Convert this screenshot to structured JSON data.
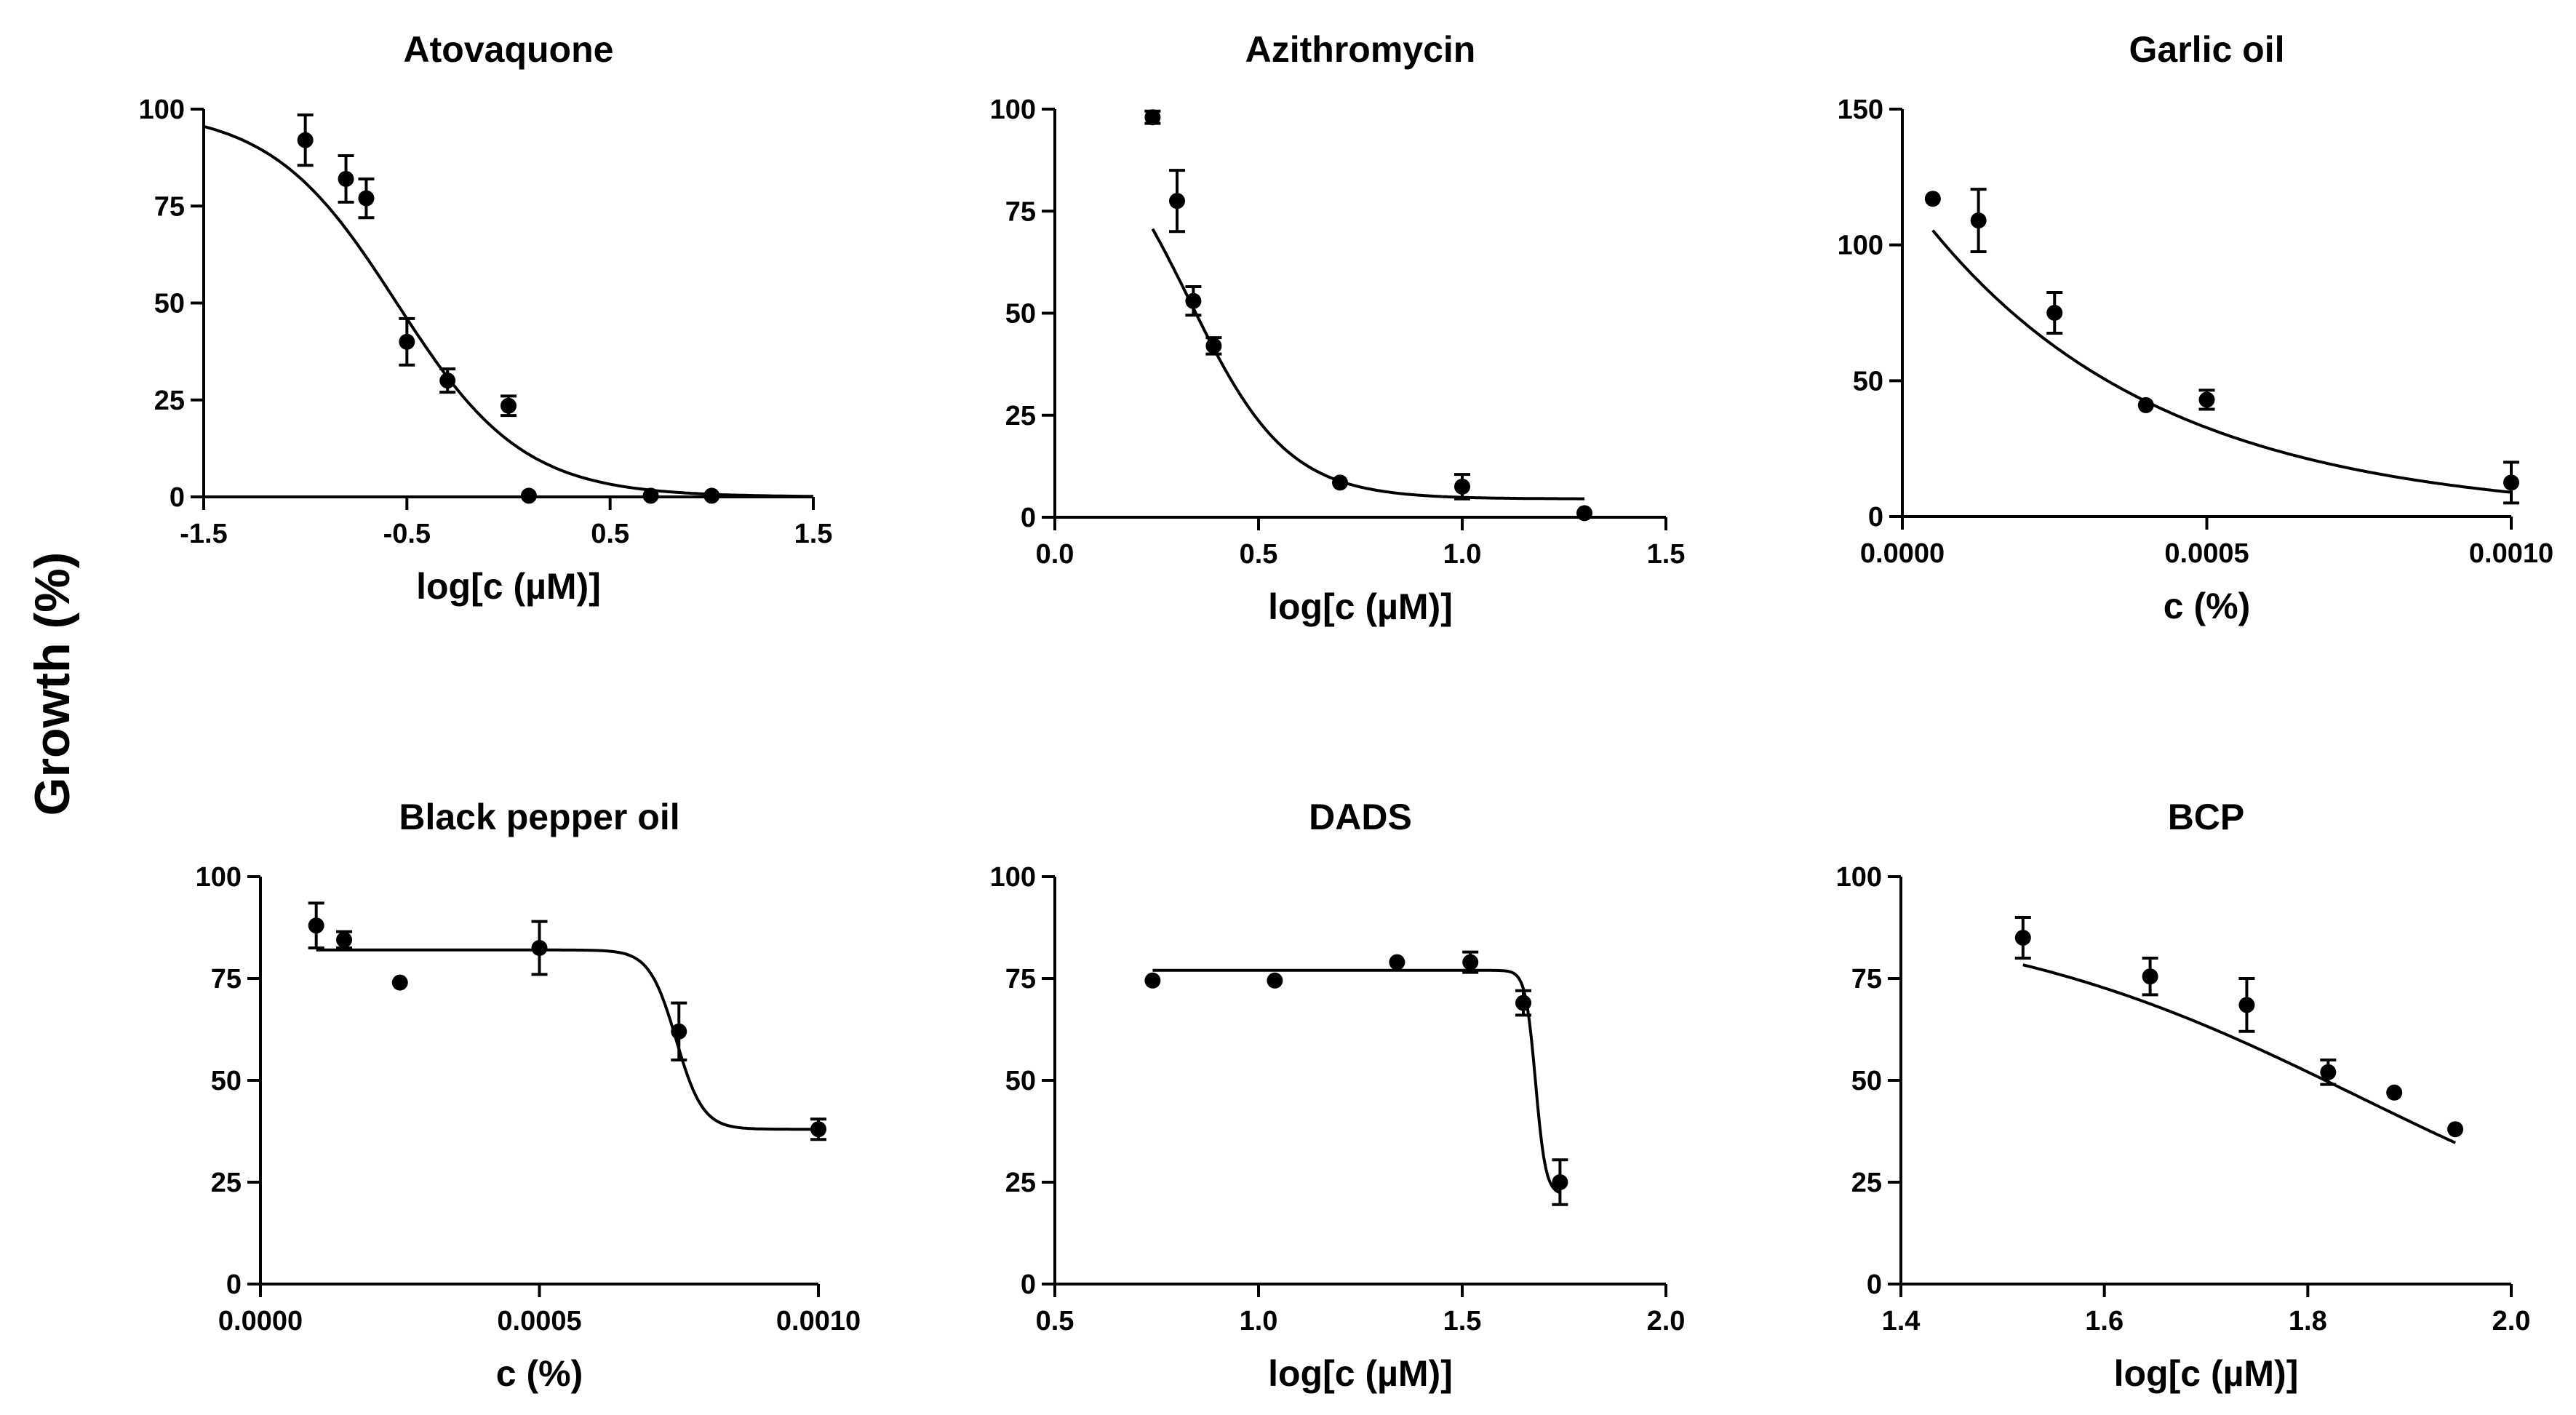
{
  "figure": {
    "shared_ylabel": "Growth (%)"
  },
  "chart_data": [
    {
      "type": "scatter",
      "title": "Atovaquone",
      "xlabel": "log[c (µM)]",
      "ylabel": "Growth (%)",
      "xlim": [
        -1.5,
        1.5
      ],
      "ylim": [
        0,
        100
      ],
      "xticks": [
        "-1.5",
        "-0.5",
        "0.5",
        "1.5"
      ],
      "yticks": [
        "0",
        "25",
        "50",
        "75",
        "100"
      ],
      "x": [
        -1.0,
        -0.8,
        -0.7,
        -0.5,
        -0.3,
        0.0,
        0.1,
        0.7,
        1.0
      ],
      "y": [
        92,
        82,
        77,
        40,
        30,
        23.5,
        0.3,
        0.3,
        0.3
      ],
      "err": [
        6.5,
        6,
        5,
        6,
        3,
        2.5,
        0,
        0,
        0
      ],
      "curve": {
        "model": "four-parameter logistic",
        "top": 100,
        "bottom": 0,
        "logIC50": -0.55,
        "hill": -1.4
      }
    },
    {
      "type": "scatter",
      "title": "Azithromycin",
      "xlabel": "log[c (µM)]",
      "ylabel": "Growth (%)",
      "xlim": [
        0.0,
        1.5
      ],
      "ylim": [
        0,
        100
      ],
      "xticks": [
        "0.0",
        "0.5",
        "1.0",
        "1.5"
      ],
      "yticks": [
        "0",
        "25",
        "50",
        "75",
        "100"
      ],
      "x": [
        0.24,
        0.3,
        0.34,
        0.39,
        0.7,
        1.0,
        1.3
      ],
      "y": [
        98,
        77.5,
        53,
        42,
        8.5,
        7.5,
        1
      ],
      "err": [
        1.5,
        7.5,
        3.5,
        2,
        0,
        3,
        0
      ],
      "curve": {
        "model": "four-parameter logistic",
        "top": 102,
        "bottom": 4.5,
        "logIC50": 0.33,
        "hill": -3.6
      },
      "curve_range": [
        0.24,
        1.3
      ]
    },
    {
      "type": "scatter",
      "title": "Garlic oil",
      "xlabel": "c (%)",
      "ylabel": "Growth (%)",
      "xlim": [
        0.0,
        0.001
      ],
      "ylim": [
        0,
        150
      ],
      "xticks": [
        "0.0000",
        "0.0005",
        "0.0010"
      ],
      "yticks": [
        "0",
        "50",
        "100",
        "150"
      ],
      "x": [
        5e-05,
        0.000125,
        0.00025,
        0.0004,
        0.0005,
        0.001
      ],
      "y": [
        117,
        109,
        75,
        41,
        43,
        12.5
      ],
      "err": [
        0,
        11.5,
        7.5,
        0,
        3.5,
        7.5
      ],
      "curve": {
        "model": "exponential decay",
        "y0": 120,
        "plateau": 0,
        "k": 2600
      },
      "curve_range": [
        5e-05,
        0.001
      ]
    },
    {
      "type": "scatter",
      "title": "Black pepper oil",
      "xlabel": "c (%)",
      "ylabel": "Growth (%)",
      "xlim": [
        0.0,
        0.001
      ],
      "ylim": [
        0,
        100
      ],
      "xticks": [
        "0.0000",
        "0.0005",
        "0.0010"
      ],
      "yticks": [
        "0",
        "25",
        "50",
        "75",
        "100"
      ],
      "x": [
        0.0001,
        0.00015,
        0.00025,
        0.0005,
        0.00075,
        0.001
      ],
      "y": [
        88,
        84.5,
        74,
        82.5,
        62,
        38
      ],
      "err": [
        5.5,
        2,
        0,
        6.5,
        7,
        2.5
      ],
      "curve": {
        "model": "sigmoidal",
        "top": 82,
        "bottom": 38,
        "mid": 0.000745,
        "slope": 2.4e-05
      },
      "curve_range": [
        0.0001,
        0.001
      ]
    },
    {
      "type": "scatter",
      "title": "DADS",
      "xlabel": "log[c (µM)]",
      "ylabel": "Growth (%)",
      "xlim": [
        0.5,
        2.0
      ],
      "ylim": [
        0,
        100
      ],
      "xticks": [
        "0.5",
        "1.0",
        "1.5",
        "2.0"
      ],
      "yticks": [
        "0",
        "25",
        "50",
        "75",
        "100"
      ],
      "x": [
        0.74,
        1.04,
        1.34,
        1.52,
        1.65,
        1.74
      ],
      "y": [
        74.5,
        74.5,
        79,
        79,
        69,
        25
      ],
      "err": [
        0,
        0,
        0,
        2.5,
        3,
        5.5
      ],
      "curve": {
        "model": "four-parameter logistic",
        "top": 77,
        "bottom": 22,
        "logIC50": 1.68,
        "hill": -35
      },
      "curve_range": [
        0.74,
        1.74
      ]
    },
    {
      "type": "scatter",
      "title": "BCP",
      "xlabel": "log[c (µM)]",
      "ylabel": "Growth (%)",
      "xlim": [
        1.4,
        2.0
      ],
      "ylim": [
        0,
        100
      ],
      "xticks": [
        "1.4",
        "1.6",
        "1.8",
        "2.0"
      ],
      "yticks": [
        "0",
        "25",
        "50",
        "75",
        "100"
      ],
      "x": [
        1.52,
        1.645,
        1.74,
        1.82,
        1.885,
        1.945
      ],
      "y": [
        85,
        75.5,
        68.5,
        52,
        47,
        38
      ],
      "err": [
        5,
        4.5,
        6.5,
        3,
        0,
        0
      ],
      "curve": {
        "model": "four-parameter logistic",
        "top": 92,
        "bottom": 0,
        "logIC50": 1.85,
        "hill": -2.3
      },
      "curve_range": [
        1.52,
        1.945
      ]
    }
  ]
}
